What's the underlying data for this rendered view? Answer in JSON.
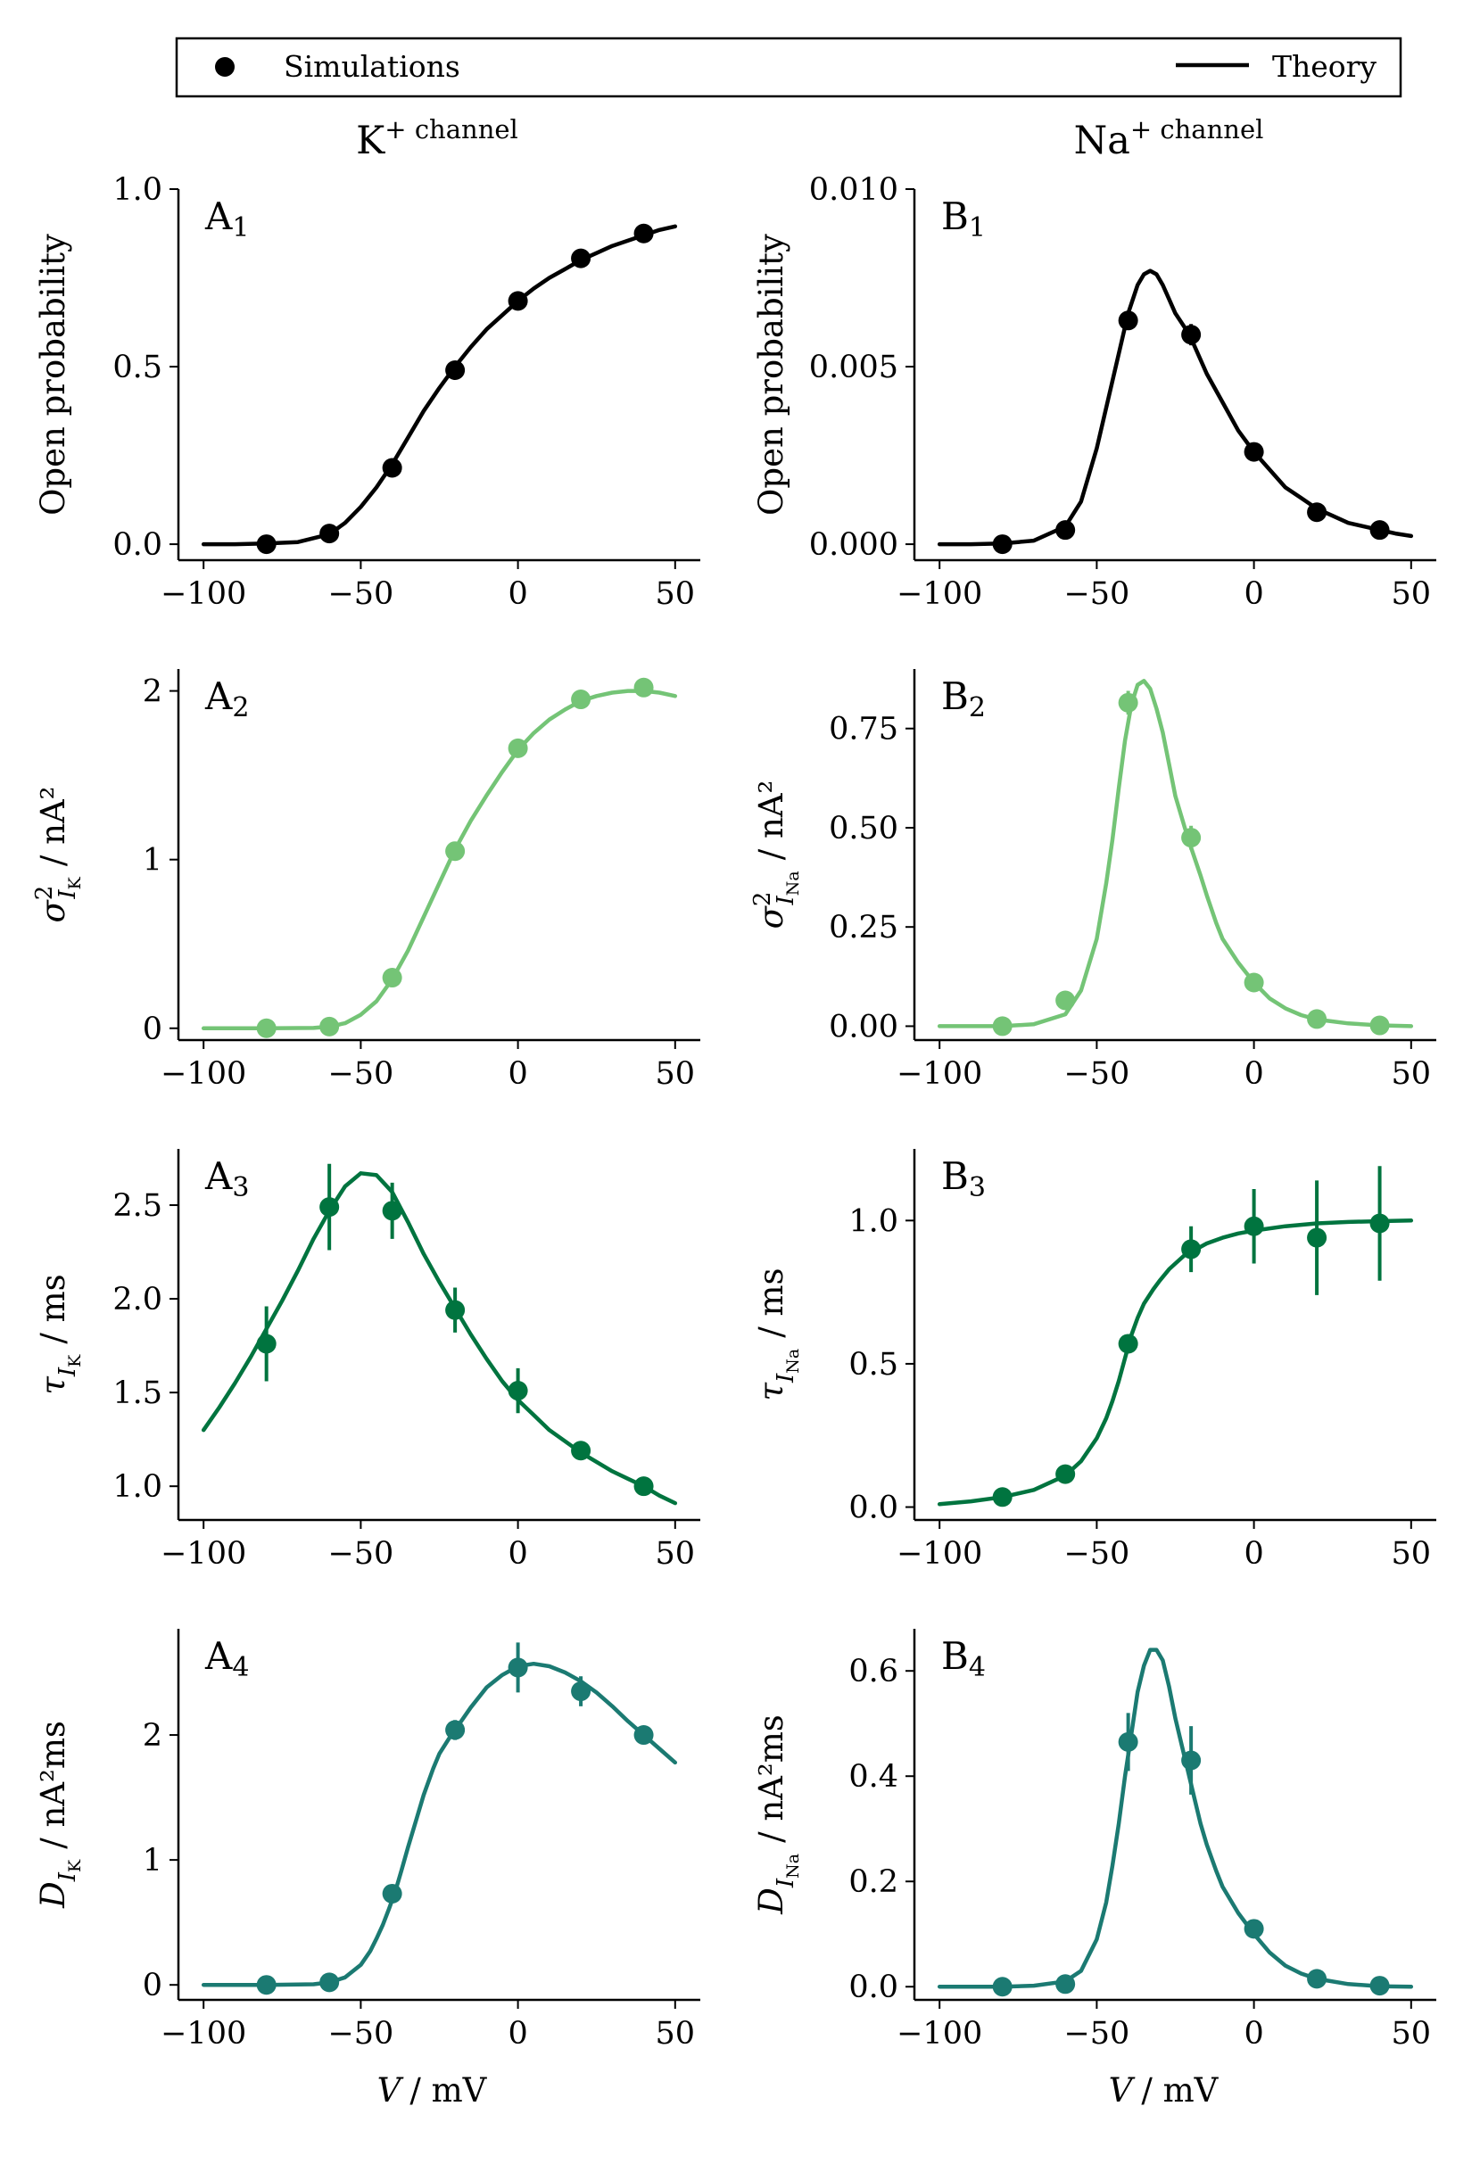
{
  "legend": {
    "simulations": "Simulations",
    "theory": "Theory"
  },
  "columns": {
    "left": "K",
    "right": "Na"
  },
  "column_suffix": "+ channel",
  "xlabel": {
    "var": "V",
    "unit": "/ mV"
  },
  "panels": [
    {
      "id": "A1",
      "letter": "A",
      "sub": "1",
      "ylabel": {
        "sym": "Open probability"
      }
    },
    {
      "id": "B1",
      "letter": "B",
      "sub": "1",
      "ylabel": {
        "sym": "Open probability"
      }
    },
    {
      "id": "A2",
      "letter": "A",
      "sub": "2",
      "ylabel": {
        "sym": "σ",
        "sup": "2",
        "sub": "I",
        "subsub": "K",
        "unit": "/ nA²"
      }
    },
    {
      "id": "B2",
      "letter": "B",
      "sub": "2",
      "ylabel": {
        "sym": "σ",
        "sup": "2",
        "sub": "I",
        "subsub": "Na",
        "unit": "/ nA²"
      }
    },
    {
      "id": "A3",
      "letter": "A",
      "sub": "3",
      "ylabel": {
        "sym": "τ",
        "sub": "I",
        "subsub": "K",
        "unit": "/ ms"
      }
    },
    {
      "id": "B3",
      "letter": "B",
      "sub": "3",
      "ylabel": {
        "sym": "τ",
        "sub": "I",
        "subsub": "Na",
        "unit": "/ ms"
      }
    },
    {
      "id": "A4",
      "letter": "A",
      "sub": "4",
      "ylabel": {
        "sym": "D",
        "sub": "I",
        "subsub": "K",
        "unit": "/ nA²ms"
      }
    },
    {
      "id": "B4",
      "letter": "B",
      "sub": "4",
      "ylabel": {
        "sym": "D",
        "sub": "I",
        "subsub": "Na",
        "unit": "/ nA²ms"
      }
    }
  ],
  "colors": {
    "row1": "#000000",
    "row2": "#74c476",
    "row3": "#00743f",
    "row4": "#1b7a72"
  },
  "chart_data": [
    {
      "id": "A1",
      "type": "line",
      "xlim": [
        -108,
        58
      ],
      "ylim": [
        -0.045,
        1.0
      ],
      "xticks": [
        -100,
        -50,
        0,
        50
      ],
      "xticklabels": [
        "−100",
        "−50",
        "0",
        "50"
      ],
      "yticks": [
        0,
        0.5,
        1.0
      ],
      "yticklabels": [
        "0.0",
        "0.5",
        "1.0"
      ],
      "theory": {
        "x": [
          -100,
          -90,
          -80,
          -70,
          -60,
          -55,
          -50,
          -45,
          -40,
          -35,
          -30,
          -25,
          -20,
          -15,
          -10,
          -5,
          0,
          5,
          10,
          15,
          20,
          25,
          30,
          35,
          40,
          45,
          50
        ],
        "y": [
          0,
          0,
          0.002,
          0.006,
          0.028,
          0.06,
          0.105,
          0.16,
          0.225,
          0.3,
          0.375,
          0.44,
          0.5,
          0.555,
          0.605,
          0.645,
          0.685,
          0.72,
          0.75,
          0.775,
          0.8,
          0.82,
          0.84,
          0.855,
          0.87,
          0.885,
          0.895
        ]
      },
      "simulations": {
        "x": [
          -80,
          -60,
          -40,
          -20,
          0,
          20,
          40
        ],
        "y": [
          0.0,
          0.03,
          0.215,
          0.49,
          0.685,
          0.805,
          0.875
        ],
        "err": [
          0,
          0,
          0,
          0,
          0,
          0,
          0
        ]
      }
    },
    {
      "id": "B1",
      "type": "line",
      "xlim": [
        -108,
        58
      ],
      "ylim": [
        -0.00045,
        0.01
      ],
      "xticks": [
        -100,
        -50,
        0,
        50
      ],
      "xticklabels": [
        "−100",
        "−50",
        "0",
        "50"
      ],
      "yticks": [
        0,
        0.005,
        0.01
      ],
      "yticklabels": [
        "0.000",
        "0.005",
        "0.010"
      ],
      "theory": {
        "x": [
          -100,
          -90,
          -80,
          -70,
          -60,
          -55,
          -50,
          -45,
          -40,
          -37,
          -35,
          -33,
          -31,
          -29,
          -27,
          -25,
          -22,
          -20,
          -15,
          -10,
          -5,
          0,
          5,
          10,
          15,
          20,
          25,
          30,
          35,
          40,
          45,
          50
        ],
        "y": [
          0,
          0,
          2e-05,
          0.0001,
          0.0005,
          0.0012,
          0.0027,
          0.0046,
          0.0065,
          0.0073,
          0.0076,
          0.0077,
          0.0076,
          0.0073,
          0.0069,
          0.0065,
          0.0061,
          0.0058,
          0.0048,
          0.004,
          0.0032,
          0.0026,
          0.0021,
          0.0016,
          0.0013,
          0.001,
          0.0008,
          0.0006,
          0.0005,
          0.0004,
          0.0003,
          0.00023
        ]
      },
      "simulations": {
        "x": [
          -80,
          -60,
          -40,
          -20,
          0,
          20,
          40
        ],
        "y": [
          0.0,
          0.0004,
          0.0063,
          0.0059,
          0.0026,
          0.0009,
          0.0004
        ],
        "err": [
          0,
          0,
          0,
          0.0003,
          0,
          0,
          0
        ]
      }
    },
    {
      "id": "A2",
      "type": "line",
      "xlim": [
        -108,
        58
      ],
      "ylim": [
        -0.07,
        2.13
      ],
      "xticks": [
        -100,
        -50,
        0,
        50
      ],
      "xticklabels": [
        "−100",
        "−50",
        "0",
        "50"
      ],
      "yticks": [
        0,
        1,
        2
      ],
      "yticklabels": [
        "0",
        "1",
        "2"
      ],
      "theory": {
        "x": [
          -100,
          -80,
          -65,
          -60,
          -55,
          -50,
          -45,
          -40,
          -35,
          -30,
          -25,
          -20,
          -15,
          -10,
          -5,
          0,
          5,
          10,
          15,
          20,
          25,
          30,
          35,
          40,
          45,
          50
        ],
        "y": [
          0,
          0,
          0.002,
          0.01,
          0.03,
          0.08,
          0.16,
          0.29,
          0.46,
          0.66,
          0.86,
          1.06,
          1.23,
          1.38,
          1.52,
          1.65,
          1.75,
          1.83,
          1.89,
          1.94,
          1.97,
          1.99,
          2.0,
          2.0,
          1.99,
          1.97
        ]
      },
      "simulations": {
        "x": [
          -80,
          -60,
          -40,
          -20,
          0,
          20,
          40
        ],
        "y": [
          0.0,
          0.01,
          0.3,
          1.05,
          1.66,
          1.95,
          2.02
        ],
        "err": [
          0,
          0,
          0,
          0,
          0,
          0,
          0
        ]
      }
    },
    {
      "id": "B2",
      "type": "line",
      "xlim": [
        -108,
        58
      ],
      "ylim": [
        -0.035,
        0.9
      ],
      "xticks": [
        -100,
        -50,
        0,
        50
      ],
      "xticklabels": [
        "−100",
        "−50",
        "0",
        "50"
      ],
      "yticks": [
        0,
        0.25,
        0.5,
        0.75
      ],
      "yticklabels": [
        "0.00",
        "0.25",
        "0.50",
        "0.75"
      ],
      "theory": {
        "x": [
          -100,
          -80,
          -70,
          -60,
          -55,
          -50,
          -47,
          -45,
          -43,
          -41,
          -39,
          -37,
          -35,
          -33,
          -31,
          -29,
          -27,
          -25,
          -22,
          -20,
          -17,
          -15,
          -12,
          -10,
          -5,
          0,
          5,
          10,
          15,
          20,
          30,
          40,
          50
        ],
        "y": [
          0,
          0,
          0.005,
          0.03,
          0.09,
          0.22,
          0.36,
          0.47,
          0.6,
          0.72,
          0.81,
          0.86,
          0.87,
          0.85,
          0.8,
          0.74,
          0.66,
          0.58,
          0.5,
          0.45,
          0.38,
          0.33,
          0.26,
          0.22,
          0.16,
          0.11,
          0.07,
          0.045,
          0.028,
          0.017,
          0.007,
          0.002,
          0.0
        ]
      },
      "simulations": {
        "x": [
          -80,
          -60,
          -40,
          -20,
          0,
          20,
          40
        ],
        "y": [
          0.0,
          0.065,
          0.815,
          0.475,
          0.11,
          0.018,
          0.002
        ],
        "err": [
          0,
          0,
          0.03,
          0.03,
          0,
          0,
          0
        ]
      }
    },
    {
      "id": "A3",
      "type": "line",
      "xlim": [
        -108,
        58
      ],
      "ylim": [
        0.82,
        2.8
      ],
      "xticks": [
        -100,
        -50,
        0,
        50
      ],
      "xticklabels": [
        "−100",
        "−50",
        "0",
        "50"
      ],
      "yticks": [
        1.0,
        1.5,
        2.0,
        2.5
      ],
      "yticklabels": [
        "1.0",
        "1.5",
        "2.0",
        "2.5"
      ],
      "theory": {
        "x": [
          -100,
          -95,
          -90,
          -85,
          -80,
          -75,
          -70,
          -65,
          -60,
          -55,
          -50,
          -45,
          -40,
          -35,
          -30,
          -25,
          -20,
          -15,
          -10,
          -5,
          0,
          5,
          10,
          15,
          20,
          25,
          30,
          35,
          40,
          45,
          50
        ],
        "y": [
          1.3,
          1.42,
          1.55,
          1.69,
          1.84,
          1.99,
          2.15,
          2.32,
          2.47,
          2.6,
          2.67,
          2.66,
          2.57,
          2.41,
          2.24,
          2.09,
          1.95,
          1.81,
          1.68,
          1.56,
          1.46,
          1.38,
          1.3,
          1.24,
          1.18,
          1.13,
          1.08,
          1.04,
          1.0,
          0.95,
          0.91
        ]
      },
      "simulations": {
        "x": [
          -80,
          -60,
          -40,
          -20,
          0,
          20,
          40
        ],
        "y": [
          1.76,
          2.49,
          2.47,
          1.94,
          1.51,
          1.19,
          1.0
        ],
        "err": [
          0.2,
          0.23,
          0.15,
          0.12,
          0.12,
          0.05,
          0.03
        ]
      }
    },
    {
      "id": "B3",
      "type": "line",
      "xlim": [
        -108,
        58
      ],
      "ylim": [
        -0.045,
        1.25
      ],
      "xticks": [
        -100,
        -50,
        0,
        50
      ],
      "xticklabels": [
        "−100",
        "−50",
        "0",
        "50"
      ],
      "yticks": [
        0,
        0.5,
        1.0
      ],
      "yticklabels": [
        "0.0",
        "0.5",
        "1.0"
      ],
      "theory": {
        "x": [
          -100,
          -90,
          -80,
          -70,
          -60,
          -55,
          -50,
          -47,
          -45,
          -43,
          -41,
          -39,
          -37,
          -35,
          -32,
          -30,
          -27,
          -25,
          -22,
          -20,
          -15,
          -10,
          -5,
          0,
          10,
          20,
          30,
          40,
          50
        ],
        "y": [
          0.01,
          0.02,
          0.035,
          0.06,
          0.11,
          0.16,
          0.24,
          0.31,
          0.37,
          0.44,
          0.52,
          0.6,
          0.66,
          0.71,
          0.76,
          0.79,
          0.83,
          0.85,
          0.88,
          0.89,
          0.92,
          0.94,
          0.955,
          0.965,
          0.98,
          0.99,
          0.995,
          0.998,
          1.0
        ]
      },
      "simulations": {
        "x": [
          -80,
          -60,
          -40,
          -20,
          0,
          20,
          40
        ],
        "y": [
          0.035,
          0.115,
          0.57,
          0.9,
          0.98,
          0.94,
          0.99
        ],
        "err": [
          0,
          0,
          0,
          0.08,
          0.13,
          0.2,
          0.2
        ]
      }
    },
    {
      "id": "A4",
      "type": "line",
      "xlim": [
        -108,
        58
      ],
      "ylim": [
        -0.12,
        2.85
      ],
      "xticks": [
        -100,
        -50,
        0,
        50
      ],
      "xticklabels": [
        "−100",
        "−50",
        "0",
        "50"
      ],
      "yticks": [
        0,
        1,
        2
      ],
      "yticklabels": [
        "0",
        "1",
        "2"
      ],
      "theory": {
        "x": [
          -100,
          -80,
          -65,
          -60,
          -55,
          -50,
          -47,
          -45,
          -43,
          -41,
          -39,
          -37,
          -35,
          -32,
          -30,
          -27,
          -25,
          -22,
          -20,
          -15,
          -10,
          -5,
          0,
          5,
          10,
          15,
          20,
          25,
          30,
          35,
          40,
          45,
          50
        ],
        "y": [
          0,
          0,
          0.005,
          0.02,
          0.06,
          0.16,
          0.27,
          0.37,
          0.48,
          0.61,
          0.75,
          0.92,
          1.1,
          1.35,
          1.52,
          1.73,
          1.85,
          1.97,
          2.04,
          2.22,
          2.38,
          2.48,
          2.55,
          2.57,
          2.55,
          2.5,
          2.43,
          2.34,
          2.23,
          2.11,
          2.0,
          1.89,
          1.78
        ]
      },
      "simulations": {
        "x": [
          -80,
          -60,
          -40,
          -20,
          0,
          20,
          40
        ],
        "y": [
          0.0,
          0.02,
          0.73,
          2.04,
          2.54,
          2.35,
          2.0
        ],
        "err": [
          0,
          0,
          0,
          0.08,
          0.2,
          0.12,
          0.06
        ]
      }
    },
    {
      "id": "B4",
      "type": "line",
      "xlim": [
        -108,
        58
      ],
      "ylim": [
        -0.025,
        0.68
      ],
      "xticks": [
        -100,
        -50,
        0,
        50
      ],
      "xticklabels": [
        "−100",
        "−50",
        "0",
        "50"
      ],
      "yticks": [
        0,
        0.2,
        0.4,
        0.6
      ],
      "yticklabels": [
        "0.0",
        "0.2",
        "0.4",
        "0.6"
      ],
      "theory": {
        "x": [
          -100,
          -80,
          -70,
          -60,
          -55,
          -50,
          -47,
          -45,
          -43,
          -41,
          -39,
          -37,
          -35,
          -33,
          -31,
          -29,
          -27,
          -25,
          -23,
          -21,
          -19,
          -17,
          -15,
          -12,
          -10,
          -5,
          0,
          5,
          10,
          15,
          20,
          30,
          40,
          50
        ],
        "y": [
          0,
          0,
          0.002,
          0.01,
          0.03,
          0.09,
          0.16,
          0.23,
          0.31,
          0.4,
          0.48,
          0.56,
          0.61,
          0.64,
          0.64,
          0.62,
          0.57,
          0.51,
          0.46,
          0.41,
          0.36,
          0.31,
          0.27,
          0.22,
          0.19,
          0.14,
          0.1,
          0.065,
          0.04,
          0.025,
          0.015,
          0.005,
          0.001,
          0.0
        ]
      },
      "simulations": {
        "x": [
          -80,
          -60,
          -40,
          -20,
          0,
          20,
          40
        ],
        "y": [
          0.0,
          0.005,
          0.465,
          0.43,
          0.11,
          0.015,
          0.002
        ],
        "err": [
          0,
          0,
          0.055,
          0.065,
          0,
          0,
          0
        ]
      }
    }
  ]
}
